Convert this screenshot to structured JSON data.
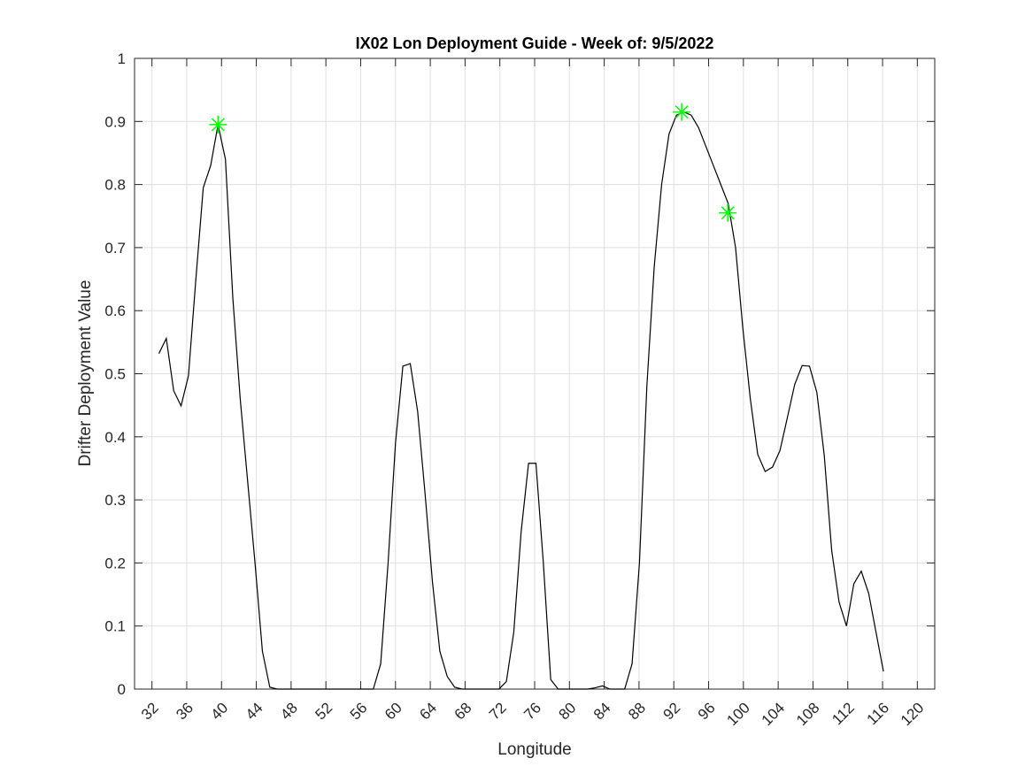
{
  "chart_data": {
    "type": "line",
    "title": "IX02 Lon Deployment Guide - Week of: 9/5/2022",
    "xlabel": "Longitude",
    "ylabel": "Drifter Deployment Value",
    "x": [
      32.8,
      33.65,
      34.5,
      35.35,
      36.2,
      37.05,
      37.9,
      38.75,
      39.6,
      40.45,
      41.3,
      42.15,
      43,
      43.85,
      44.7,
      45.55,
      46.4,
      47.25,
      48.1,
      48.95,
      49.8,
      50.65,
      51.5,
      52.35,
      53.2,
      54.05,
      54.9,
      55.75,
      56.6,
      57.45,
      58.3,
      59.15,
      60,
      60.85,
      61.7,
      62.55,
      63.4,
      64.25,
      65.1,
      65.95,
      66.8,
      67.65,
      68.5,
      69.35,
      70.2,
      71.05,
      71.9,
      72.75,
      73.6,
      74.45,
      75.3,
      76.15,
      77,
      77.85,
      78.7,
      79.55,
      80.4,
      81.25,
      82.1,
      82.95,
      83.8,
      84.65,
      85.5,
      86.35,
      87.2,
      88.05,
      88.9,
      89.75,
      90.6,
      91.45,
      92.3,
      93.15,
      94,
      94.85,
      95.7,
      96.55,
      97.4,
      98.25,
      99.1,
      99.95,
      100.8,
      101.65,
      102.5,
      103.35,
      104.2,
      105.05,
      105.9,
      106.75,
      107.6,
      108.45,
      109.3,
      110.15,
      111,
      111.85,
      112.7,
      113.55,
      114.4,
      115.25,
      116.1
    ],
    "series": [
      {
        "color": "#000000",
        "values": [
          0.532,
          0.556,
          0.473,
          0.449,
          0.497,
          0.65,
          0.795,
          0.83,
          0.895,
          0.84,
          0.62,
          0.46,
          0.33,
          0.2,
          0.06,
          0.003,
          0,
          0,
          0,
          0,
          0,
          0,
          0,
          0,
          0,
          0,
          0,
          0,
          0,
          0,
          0.04,
          0.2,
          0.39,
          0.512,
          0.516,
          0.44,
          0.31,
          0.17,
          0.06,
          0.02,
          0.003,
          0,
          0,
          0,
          0,
          0,
          0,
          0.012,
          0.09,
          0.25,
          0.358,
          0.358,
          0.2,
          0.015,
          0,
          0,
          0,
          0,
          0,
          0.002,
          0.005,
          0,
          0,
          0,
          0.04,
          0.2,
          0.48,
          0.67,
          0.8,
          0.88,
          0.91,
          0.915,
          0.91,
          0.89,
          0.86,
          0.83,
          0.8,
          0.77,
          0.7,
          0.57,
          0.46,
          0.372,
          0.345,
          0.352,
          0.378,
          0.43,
          0.483,
          0.513,
          0.512,
          0.47,
          0.37,
          0.22,
          0.138,
          0.1,
          0.167,
          0.187,
          0.152,
          0.09,
          0.028
        ]
      }
    ],
    "markers": {
      "color": "#00ff00",
      "x": [
        39.6,
        92.9,
        98.2
      ],
      "values": [
        0.895,
        0.915,
        0.755
      ]
    },
    "xlim": [
      30,
      122
    ],
    "xticks": [
      32,
      36,
      40,
      44,
      48,
      52,
      56,
      60,
      64,
      68,
      72,
      76,
      80,
      84,
      88,
      92,
      96,
      100,
      104,
      108,
      112,
      116,
      120
    ],
    "ylim": [
      0,
      1
    ],
    "yticks": [
      0,
      0.1,
      0.2,
      0.3,
      0.4,
      0.5,
      0.6,
      0.7,
      0.8,
      0.9,
      1
    ],
    "grid": true
  }
}
